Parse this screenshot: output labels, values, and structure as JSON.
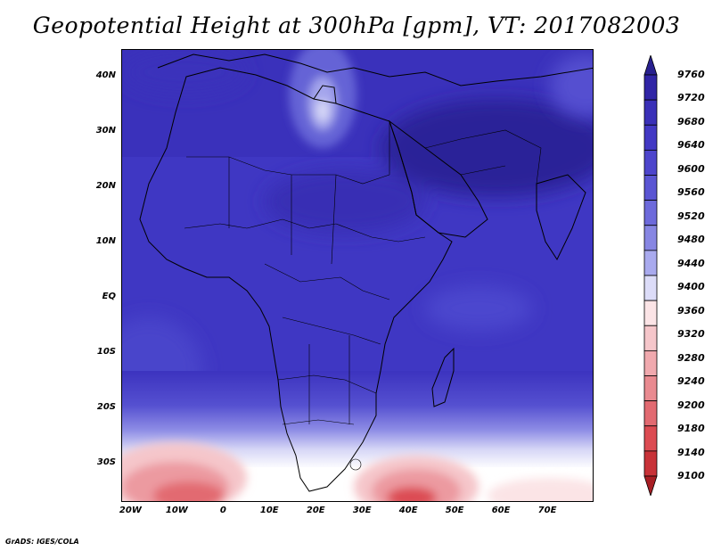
{
  "title": "Geopotential Height at 300hPa [gpm], VT: 2017082003",
  "credit": "GrADS: IGES/COLA",
  "map": {
    "projection": "lat-lon",
    "lon_range": [
      -22,
      80
    ],
    "lat_range": [
      -37,
      45
    ],
    "lat_ticks": [
      {
        "label": "40N",
        "value": 40
      },
      {
        "label": "30N",
        "value": 30
      },
      {
        "label": "20N",
        "value": 20
      },
      {
        "label": "10N",
        "value": 10
      },
      {
        "label": "EQ",
        "value": 0
      },
      {
        "label": "10S",
        "value": -10
      },
      {
        "label": "20S",
        "value": -20
      },
      {
        "label": "30S",
        "value": -30
      }
    ],
    "lon_ticks": [
      {
        "label": "20W",
        "value": -20
      },
      {
        "label": "10W",
        "value": -10
      },
      {
        "label": "0",
        "value": 0
      },
      {
        "label": "10E",
        "value": 10
      },
      {
        "label": "20E",
        "value": 20
      },
      {
        "label": "30E",
        "value": 30
      },
      {
        "label": "40E",
        "value": 40
      },
      {
        "label": "50E",
        "value": 50
      },
      {
        "label": "60E",
        "value": 60
      },
      {
        "label": "70E",
        "value": 70
      }
    ]
  },
  "colorbar": {
    "labels": [
      "9760",
      "9720",
      "9680",
      "9640",
      "9600",
      "9560",
      "9520",
      "9480",
      "9440",
      "9400",
      "9360",
      "9320",
      "9280",
      "9240",
      "9200",
      "9180",
      "9140",
      "9100"
    ],
    "colors": [
      "#28208f",
      "#3025a6",
      "#3a30b8",
      "#4238c4",
      "#4d45cc",
      "#5a55d3",
      "#6d6adb",
      "#8786e3",
      "#a9aaee",
      "#dcdcf8",
      "#fbe4e6",
      "#f5c6ca",
      "#f0a9ae",
      "#e98a90",
      "#e26a71",
      "#dc4b52",
      "#c83238",
      "#a81e24"
    ]
  }
}
